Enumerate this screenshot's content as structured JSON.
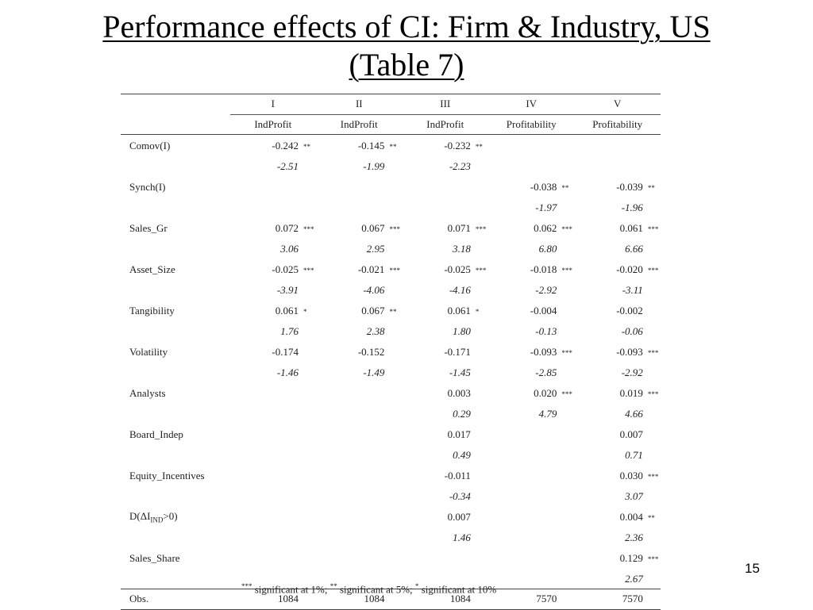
{
  "slide": {
    "title_line1": "Performance effects of CI: Firm & Industry, US",
    "title_line2": "(Table 7)",
    "page_number": "15"
  },
  "table": {
    "models": [
      "I",
      "II",
      "III",
      "IV",
      "V"
    ],
    "dependent_vars": [
      "IndProfit",
      "IndProfit",
      "IndProfit",
      "Profitability",
      "Profitability"
    ],
    "rows": [
      {
        "label": "Comov(I)",
        "coef": [
          "-0.242",
          "-0.145",
          "-0.232",
          "",
          ""
        ],
        "sig": [
          "**",
          "**",
          "**",
          "",
          ""
        ],
        "tstat": [
          "-2.51",
          "-1.99",
          "-2.23",
          "",
          ""
        ]
      },
      {
        "label": "Synch(I)",
        "coef": [
          "",
          "",
          "",
          "-0.038",
          "-0.039"
        ],
        "sig": [
          "",
          "",
          "",
          "**",
          "**"
        ],
        "tstat": [
          "",
          "",
          "",
          "-1.97",
          "-1.96"
        ]
      },
      {
        "label": "Sales_Gr",
        "coef": [
          "0.072",
          "0.067",
          "0.071",
          "0.062",
          "0.061"
        ],
        "sig": [
          "***",
          "***",
          "***",
          "***",
          "***"
        ],
        "tstat": [
          "3.06",
          "2.95",
          "3.18",
          "6.80",
          "6.66"
        ]
      },
      {
        "label": "Asset_Size",
        "coef": [
          "-0.025",
          "-0.021",
          "-0.025",
          "-0.018",
          "-0.020"
        ],
        "sig": [
          "***",
          "***",
          "***",
          "***",
          "***"
        ],
        "tstat": [
          "-3.91",
          "-4.06",
          "-4.16",
          "-2.92",
          "-3.11"
        ]
      },
      {
        "label": "Tangibility",
        "coef": [
          "0.061",
          "0.067",
          "0.061",
          "-0.004",
          "-0.002"
        ],
        "sig": [
          "*",
          "**",
          "*",
          "",
          ""
        ],
        "tstat": [
          "1.76",
          "2.38",
          "1.80",
          "-0.13",
          "-0.06"
        ]
      },
      {
        "label": "Volatility",
        "coef": [
          "-0.174",
          "-0.152",
          "-0.171",
          "-0.093",
          "-0.093"
        ],
        "sig": [
          "",
          "",
          "",
          "***",
          "***"
        ],
        "tstat": [
          "-1.46",
          "-1.49",
          "-1.45",
          "-2.85",
          "-2.92"
        ]
      },
      {
        "label": "Analysts",
        "coef": [
          "",
          "",
          "0.003",
          "0.020",
          "0.019"
        ],
        "sig": [
          "",
          "",
          "",
          "***",
          "***"
        ],
        "tstat": [
          "",
          "",
          "0.29",
          "4.79",
          "4.66"
        ]
      },
      {
        "label": "Board_Indep",
        "coef": [
          "",
          "",
          "0.017",
          "",
          "0.007"
        ],
        "sig": [
          "",
          "",
          "",
          "",
          ""
        ],
        "tstat": [
          "",
          "",
          "0.49",
          "",
          "0.71"
        ]
      },
      {
        "label": "Equity_Incentives",
        "coef": [
          "",
          "",
          "-0.011",
          "",
          "0.030"
        ],
        "sig": [
          "",
          "",
          "",
          "",
          "***"
        ],
        "tstat": [
          "",
          "",
          "-0.34",
          "",
          "3.07"
        ]
      },
      {
        "label_pre": "D(ΔI",
        "label_sub": "IND",
        "label_post": ">0)",
        "coef": [
          "",
          "",
          "0.007",
          "",
          "0.004"
        ],
        "sig": [
          "",
          "",
          "",
          "",
          "**"
        ],
        "tstat": [
          "",
          "",
          "1.46",
          "",
          "2.36"
        ]
      },
      {
        "label": "Sales_Share",
        "coef": [
          "",
          "",
          "",
          "",
          "0.129"
        ],
        "sig": [
          "",
          "",
          "",
          "",
          "***"
        ],
        "tstat": [
          "",
          "",
          "",
          "",
          "2.67"
        ]
      }
    ],
    "obs_label": "Obs.",
    "obs": [
      "1084",
      "1084",
      "1084",
      "7570",
      "7570"
    ]
  },
  "footnote": {
    "sig1_mark": "***",
    "sig1_text": " significant at 1%; ",
    "sig5_mark": "**",
    "sig5_text": " significant at 5%; ",
    "sig10_mark": "*",
    "sig10_text": " significant at 10%"
  }
}
